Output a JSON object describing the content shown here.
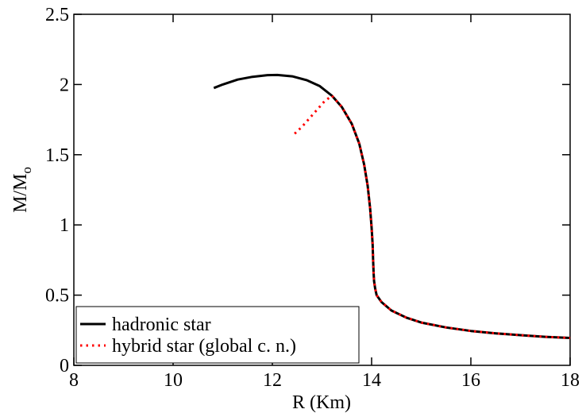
{
  "chart_data": {
    "type": "line",
    "xlabel": "R (Km)",
    "ylabel": "M/M",
    "ylabel_subscript": "o",
    "xlim": [
      8,
      18
    ],
    "ylim": [
      0,
      2.5
    ],
    "xticks": [
      "8",
      "10",
      "12",
      "14",
      "16",
      "18"
    ],
    "yticks": [
      "0",
      "0.5",
      "1",
      "1.5",
      "2",
      "2.5"
    ],
    "grid": false,
    "legend_position": "bottom-left",
    "series": [
      {
        "name": "hadronic star",
        "style": "solid",
        "color": "#000000",
        "x": [
          10.82,
          11.0,
          11.3,
          11.6,
          11.9,
          12.1,
          12.4,
          12.7,
          12.95,
          13.2,
          13.4,
          13.6,
          13.75,
          13.85,
          13.92,
          13.97,
          14.0,
          14.02,
          14.03,
          14.04,
          14.05,
          14.07,
          14.1,
          14.2,
          14.4,
          14.7,
          15.0,
          15.5,
          16.0,
          16.5,
          17.0,
          17.5,
          18.0
        ],
        "y": [
          1.975,
          2.0,
          2.035,
          2.055,
          2.067,
          2.068,
          2.058,
          2.03,
          1.99,
          1.92,
          1.84,
          1.72,
          1.58,
          1.43,
          1.28,
          1.12,
          0.98,
          0.86,
          0.75,
          0.66,
          0.6,
          0.55,
          0.5,
          0.45,
          0.39,
          0.34,
          0.305,
          0.27,
          0.245,
          0.228,
          0.215,
          0.203,
          0.195
        ]
      },
      {
        "name": "hybrid star (global c. n.)",
        "style": "dotted",
        "color": "#ff0000",
        "x": [
          12.45,
          12.6,
          12.75,
          12.9,
          13.05,
          13.2,
          13.4,
          13.6,
          13.75,
          13.85,
          13.92,
          13.97,
          14.0,
          14.02,
          14.03,
          14.04,
          14.05,
          14.07,
          14.1,
          14.2,
          14.4,
          14.7,
          15.0,
          15.5,
          16.0,
          16.5,
          17.0,
          17.5,
          18.0
        ],
        "y": [
          1.65,
          1.7,
          1.76,
          1.82,
          1.88,
          1.92,
          1.84,
          1.72,
          1.58,
          1.43,
          1.28,
          1.12,
          0.98,
          0.86,
          0.75,
          0.66,
          0.6,
          0.55,
          0.5,
          0.45,
          0.39,
          0.34,
          0.305,
          0.27,
          0.245,
          0.228,
          0.215,
          0.203,
          0.195
        ]
      }
    ]
  }
}
